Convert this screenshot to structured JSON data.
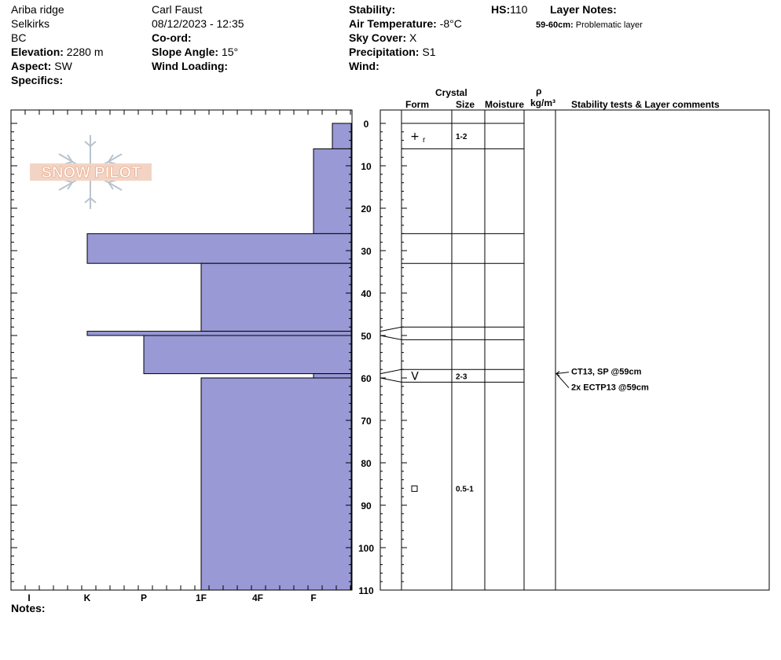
{
  "header": {
    "location": "Ariba ridge",
    "range": "Selkirks",
    "state": "BC",
    "elevation_label": "Elevation:",
    "elevation": "2280 m",
    "aspect_label": "Aspect:",
    "aspect": "SW",
    "specifics_label": "Specifics:",
    "observer": "Carl Faust",
    "datetime": "08/12/2023 - 12:35",
    "coord_label": "Co-ord:",
    "slope_label": "Slope Angle:",
    "slope": "15°",
    "wind_loading_label": "Wind Loading:",
    "stability_label": "Stability:",
    "air_temp_label": "Air Temperature:",
    "air_temp": "-8°C",
    "sky_label": "Sky Cover:",
    "sky": "X",
    "precip_label": "Precipitation:",
    "precip": "S1",
    "wind_label": "Wind:",
    "hs_label": "HS:",
    "hs": "110",
    "layer_notes_label": "Layer Notes:",
    "layer_note_depth": "59-60cm:",
    "layer_note_text": "Problematic layer"
  },
  "logo_text": "SNOW PILOT",
  "columns": {
    "crystal": "Crystal",
    "form": "Form",
    "size": "Size",
    "moisture": "Moisture",
    "rho": "ρ",
    "density_unit": "kg/m³",
    "comments": "Stability tests & Layer comments"
  },
  "notes_label": "Notes:",
  "chart_data": {
    "type": "bar",
    "orientation": "horizontal",
    "depth_axis": {
      "range": [
        0,
        110
      ],
      "ticks": [
        0,
        10,
        20,
        30,
        40,
        50,
        60,
        70,
        80,
        90,
        100,
        110
      ],
      "inverted": true
    },
    "hardness_axis": {
      "categories": [
        "I",
        "K",
        "P",
        "1F",
        "4F",
        "F"
      ],
      "reversed": true
    },
    "hand_hardness_layers": [
      {
        "top": 0,
        "bottom": 6,
        "hardness": "F-"
      },
      {
        "top": 6,
        "bottom": 26,
        "hardness": "F"
      },
      {
        "top": 26,
        "bottom": 33,
        "hardness": "K"
      },
      {
        "top": 33,
        "bottom": 49,
        "hardness": "1F"
      },
      {
        "top": 49,
        "bottom": 50,
        "hardness": "K"
      },
      {
        "top": 50,
        "bottom": 59,
        "hardness": "P"
      },
      {
        "top": 59,
        "bottom": 60,
        "hardness": "F"
      },
      {
        "top": 60,
        "bottom": 110,
        "hardness": "1F"
      }
    ],
    "layer_boundaries": [
      0,
      6,
      26,
      33,
      48,
      51,
      58,
      61
    ],
    "crystals": [
      {
        "depth": 3,
        "form": "+",
        "form_sub": "r",
        "size": "1-2"
      },
      {
        "depth": 59.5,
        "form": "V",
        "size": "2-3"
      },
      {
        "depth": 86,
        "form": "□",
        "size": "0.5-1"
      }
    ],
    "stability_tests": [
      {
        "depth": 59,
        "text": "CT13, SP @59cm"
      },
      {
        "depth": 59,
        "text": "2x ECTP13 @59cm"
      }
    ],
    "colors": {
      "bars": "#9999d6",
      "bar_edge": "#000000"
    }
  }
}
